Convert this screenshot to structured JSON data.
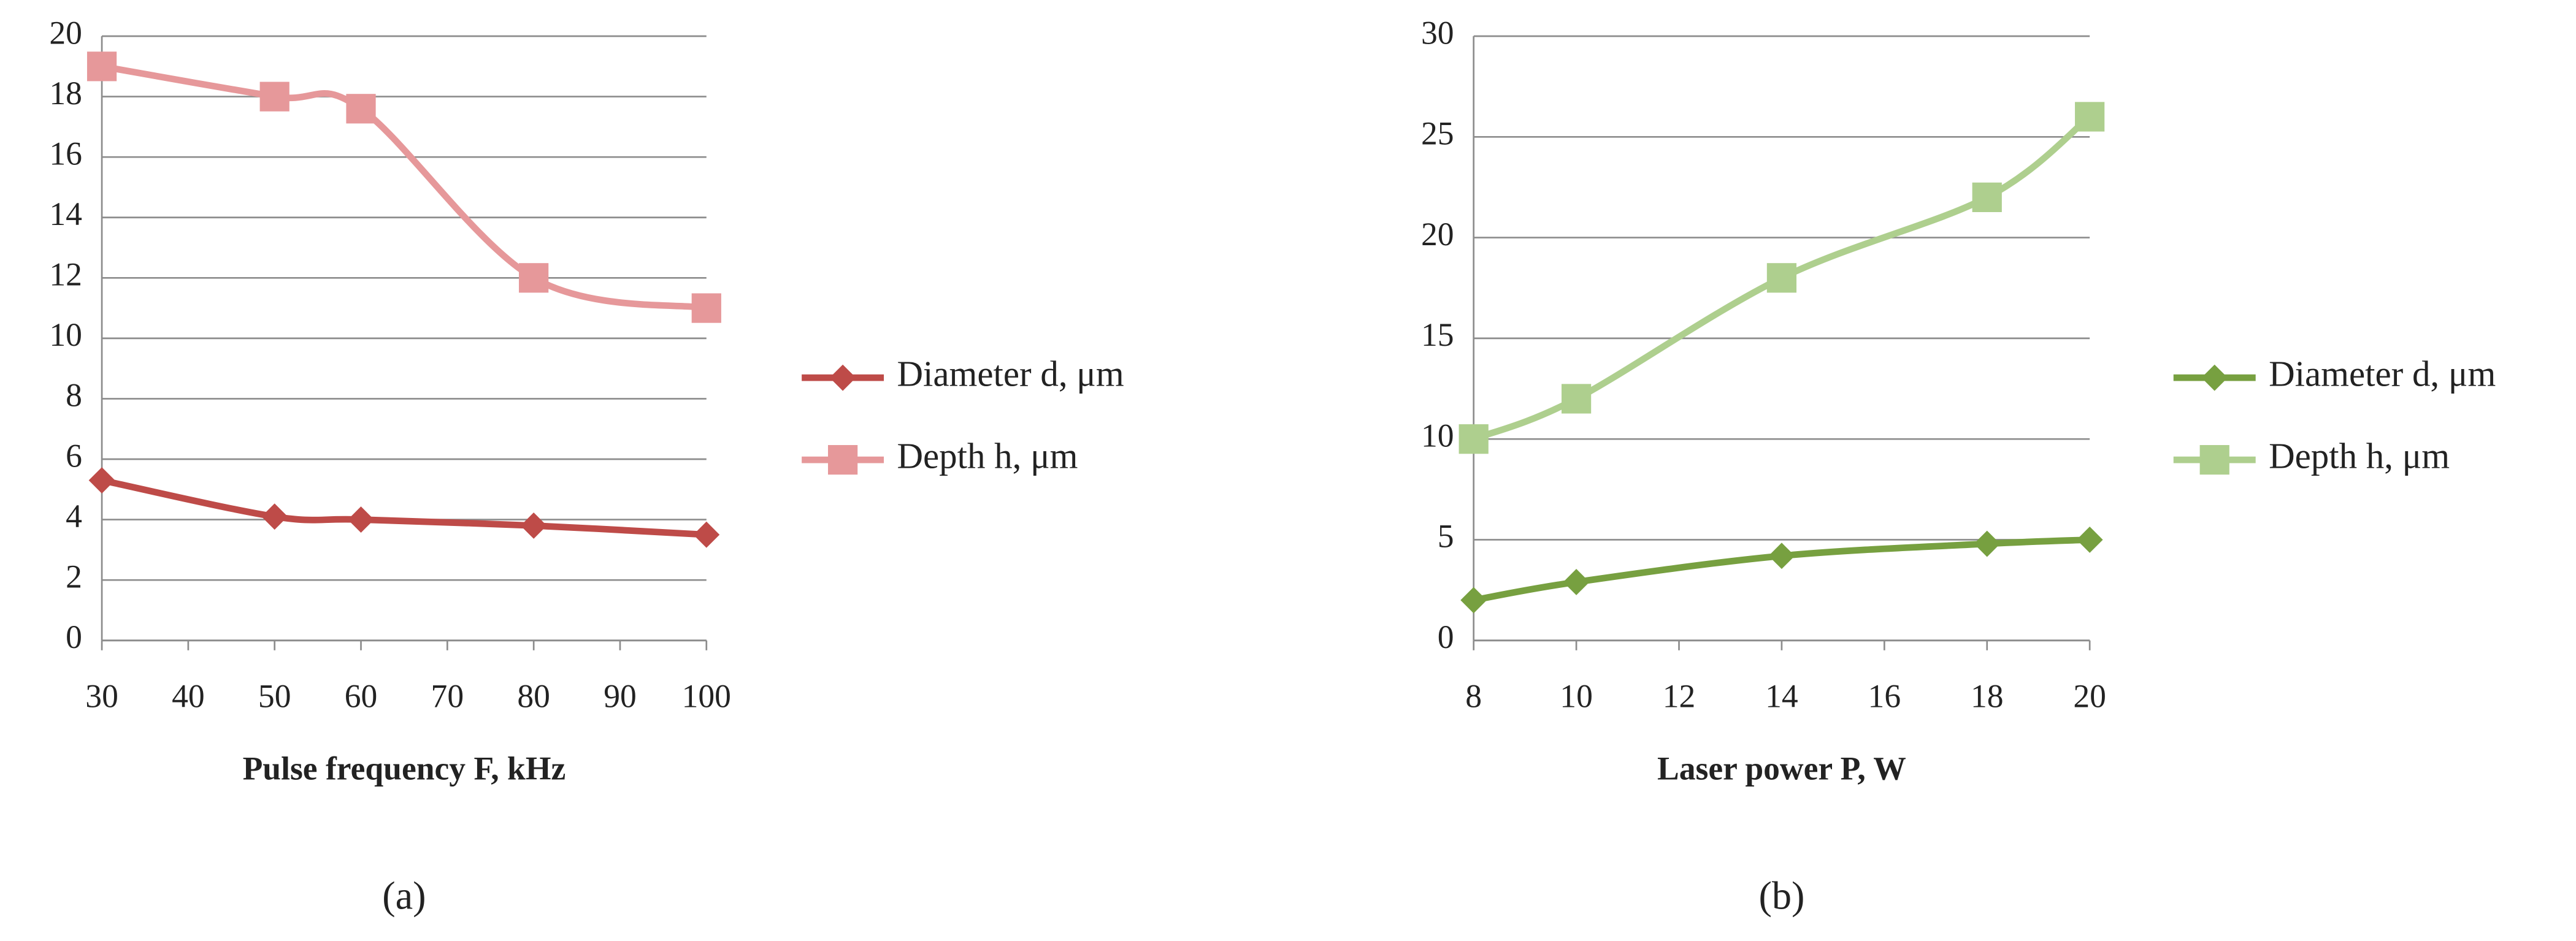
{
  "chart_data": [
    {
      "type": "line",
      "label": "(a)",
      "x_label": "Pulse frequency F, kHz",
      "x": [
        30,
        50,
        60,
        80,
        100
      ],
      "xlim": [
        30,
        100
      ],
      "xticks": [
        30,
        40,
        50,
        60,
        70,
        80,
        90,
        100
      ],
      "ylim": [
        0,
        20
      ],
      "yticks": [
        0,
        2,
        4,
        6,
        8,
        10,
        12,
        14,
        16,
        18,
        20
      ],
      "grid": true,
      "legend": "right",
      "series": [
        {
          "name": "Diameter d, μm",
          "color": "#be4b48",
          "marker": "diamond",
          "values": [
            5.3,
            4.1,
            4.0,
            3.8,
            3.5
          ]
        },
        {
          "name": "Depth h, μm",
          "color": "#e6989a",
          "marker": "square",
          "values": [
            19,
            18,
            17.6,
            12,
            11
          ]
        }
      ]
    },
    {
      "type": "line",
      "label": "(b)",
      "x_label": "Laser power P, W",
      "x": [
        8,
        10,
        14,
        18,
        20
      ],
      "xlim": [
        8,
        20
      ],
      "xticks": [
        8,
        10,
        12,
        14,
        16,
        18,
        20
      ],
      "ylim": [
        0,
        30
      ],
      "yticks": [
        0,
        5,
        10,
        15,
        20,
        25,
        30
      ],
      "grid": true,
      "legend": "right",
      "series": [
        {
          "name": "Diameter d, μm",
          "color": "#77a040",
          "marker": "diamond",
          "values": [
            2,
            2.9,
            4.2,
            4.8,
            5
          ]
        },
        {
          "name": "Depth h, μm",
          "color": "#aecf8e",
          "marker": "square",
          "values": [
            10,
            12,
            18,
            22,
            26
          ]
        }
      ]
    }
  ]
}
